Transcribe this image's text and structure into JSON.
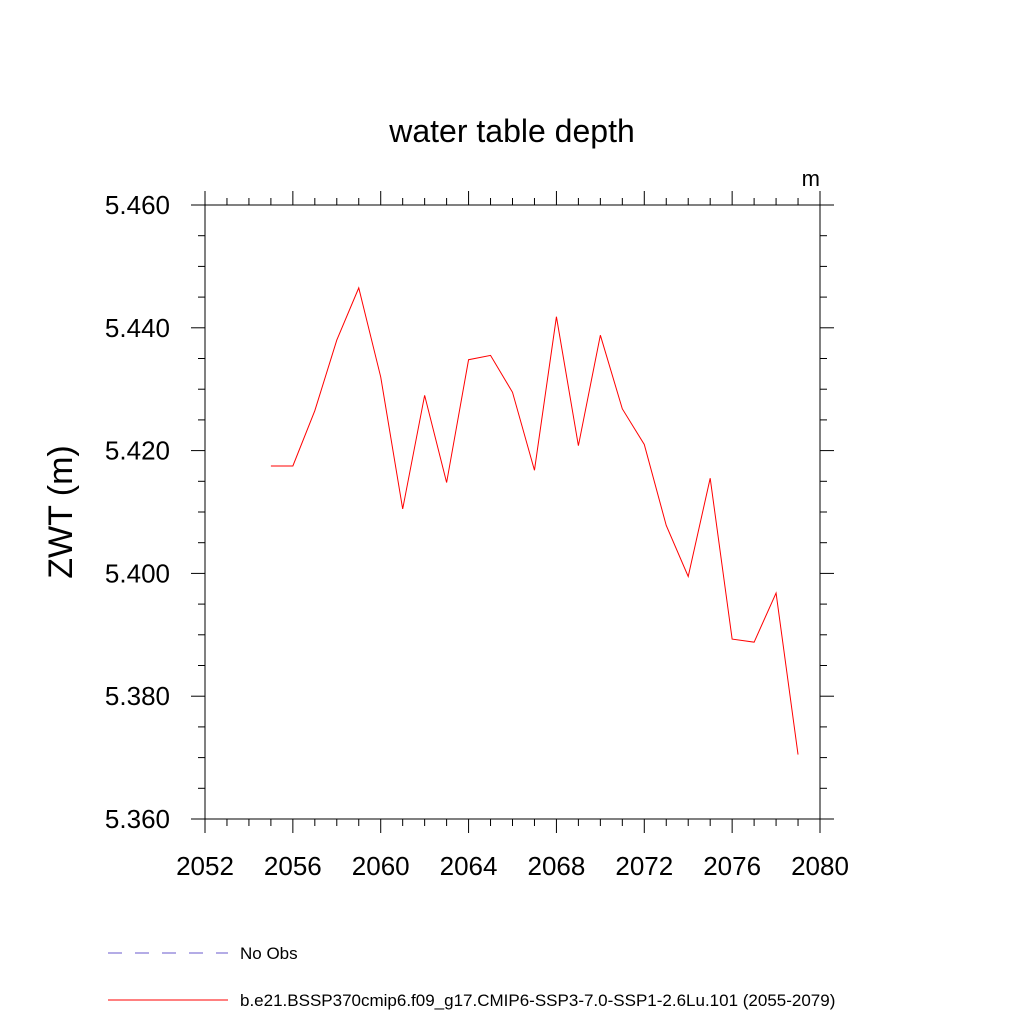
{
  "chart_data": {
    "type": "line",
    "title": "water table depth",
    "units_label": "m",
    "ylabel": "ZWT  (m)",
    "xlabel": "",
    "xlim": [
      2052,
      2080
    ],
    "ylim": [
      5.36,
      5.46
    ],
    "x_ticks": [
      2052,
      2056,
      2060,
      2064,
      2068,
      2072,
      2076,
      2080
    ],
    "x_tick_labels": [
      "2052",
      "2056",
      "2060",
      "2064",
      "2068",
      "2072",
      "2076",
      "2080"
    ],
    "y_ticks": [
      5.36,
      5.38,
      5.4,
      5.42,
      5.44,
      5.46
    ],
    "y_tick_labels": [
      "5.360",
      "5.380",
      "5.400",
      "5.420",
      "5.440",
      "5.460"
    ],
    "x_minor_step": 1,
    "y_minor_step": 0.005,
    "grid": false,
    "legend_position": "bottom-left",
    "legend": [
      {
        "label": "No Obs",
        "color": "#6a5acd",
        "style": "dashed"
      },
      {
        "label": "b.e21.BSSP370cmip6.f09_g17.CMIP6-SSP3-7.0-SSP1-2.6Lu.101 (2055-2079)",
        "color": "#ff0000",
        "style": "solid"
      }
    ],
    "series": [
      {
        "color": "#ff0000",
        "x": [
          2055,
          2056,
          2057,
          2058,
          2059,
          2060,
          2061,
          2062,
          2063,
          2064,
          2065,
          2066,
          2067,
          2068,
          2069,
          2070,
          2071,
          2072,
          2073,
          2074,
          2075,
          2076,
          2077,
          2078,
          2079
        ],
        "y": [
          5.4175,
          5.4175,
          5.4265,
          5.438,
          5.4465,
          5.432,
          5.4105,
          5.429,
          5.4148,
          5.4348,
          5.4355,
          5.4295,
          5.4168,
          5.4418,
          5.4208,
          5.4388,
          5.4268,
          5.421,
          5.4078,
          5.3995,
          5.4155,
          5.3893,
          5.3888,
          5.3968,
          5.3705
        ]
      }
    ]
  }
}
